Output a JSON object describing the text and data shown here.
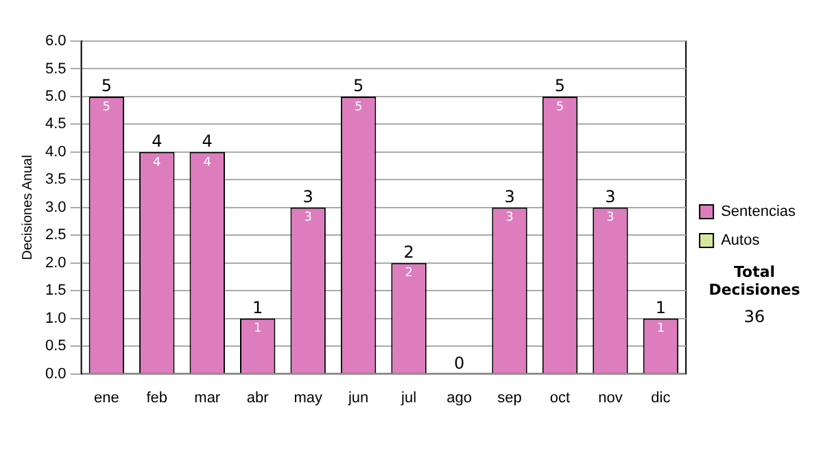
{
  "chart_data": {
    "type": "bar",
    "ylabel": "Decisiones Anual",
    "categories": [
      "ene",
      "feb",
      "mar",
      "abr",
      "may",
      "jun",
      "jul",
      "ago",
      "sep",
      "oct",
      "nov",
      "dic"
    ],
    "series": [
      {
        "name": "Sentencias",
        "color": "#dd7dbe",
        "values": [
          5,
          4,
          4,
          1,
          3,
          5,
          2,
          0,
          3,
          5,
          3,
          1
        ],
        "value_labels": [
          "5",
          "4",
          "4",
          "1",
          "3",
          "5",
          "2",
          null,
          "3",
          "5",
          "3",
          "1"
        ]
      },
      {
        "name": "Autos",
        "color": "#d4e8a0",
        "values": [
          0,
          0,
          0,
          0,
          0,
          0,
          0,
          0,
          0,
          0,
          0,
          0
        ]
      }
    ],
    "stacked": true,
    "ylim": [
      0,
      6
    ],
    "yticks": [
      {
        "value": 0,
        "label": "0.0"
      },
      {
        "value": 0.5,
        "label": "0.5"
      },
      {
        "value": 1,
        "label": "1.0"
      },
      {
        "value": 1.5,
        "label": "1.5"
      },
      {
        "value": 2,
        "label": "2.0"
      },
      {
        "value": 2.5,
        "label": "2.5"
      },
      {
        "value": 3,
        "label": "3.0"
      },
      {
        "value": 3.5,
        "label": "3.5"
      },
      {
        "value": 4,
        "label": "4.0"
      },
      {
        "value": 4.5,
        "label": "4.5"
      },
      {
        "value": 5,
        "label": "5.0"
      },
      {
        "value": 5.5,
        "label": "5.5"
      },
      {
        "value": 6,
        "label": "6.0"
      }
    ],
    "grid": "y",
    "legend": "right",
    "totals": [
      "5",
      "4",
      "4",
      "1",
      "3",
      "5",
      "2",
      "0",
      "3",
      "5",
      "3",
      "1"
    ],
    "annotations": [
      "Total Decisiones",
      "36"
    ]
  }
}
